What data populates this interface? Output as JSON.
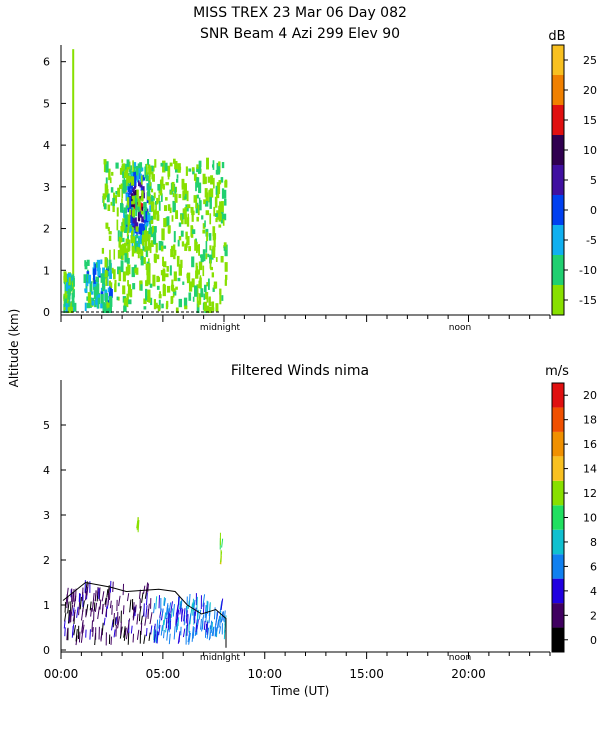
{
  "header": {
    "title_line1": "MISS TREX    23 Mar 06 Day 082",
    "title_line2": "SNR Beam 4 Azi 299 Elev 90"
  },
  "shared": {
    "ylabel": "Altitude (km)",
    "xlabel": "Time (UT)",
    "x_ticks": [
      "00:00",
      "05:00",
      "10:00",
      "15:00",
      "20:00"
    ],
    "x_markers": [
      "midnight",
      "noon"
    ]
  },
  "chart_data": [
    {
      "type": "heatmap",
      "title": "",
      "colorbar_unit": "dB",
      "xlim_hours": [
        0,
        24
      ],
      "ylim_km": [
        0,
        6.4
      ],
      "y_ticks": [
        "0",
        "1",
        "2",
        "3",
        "4",
        "5",
        "6"
      ],
      "colorbar_ticks": [
        "-15",
        "-10",
        "-5",
        "0",
        "5",
        "10",
        "15",
        "20",
        "25"
      ],
      "colorbar_colors": [
        "#88e000",
        "#20d070",
        "#10b0f0",
        "#0040f0",
        "#4010a0",
        "#300050",
        "#e01010",
        "#f08000",
        "#f8c020"
      ],
      "data_extent_hours": [
        0,
        8.1
      ],
      "features": [
        {
          "label": "column",
          "x_hours": [
            0.55,
            0.6
          ],
          "alt_km": [
            0,
            6.3
          ],
          "level_db": -15
        },
        {
          "label": "low_echo",
          "x_hours": [
            0.1,
            0.6
          ],
          "alt_km": [
            0.1,
            1.0
          ],
          "level_db": -8
        },
        {
          "label": "low_echo",
          "x_hours": [
            1.1,
            2.4
          ],
          "alt_km": [
            0.2,
            1.3
          ],
          "level_db": -5
        },
        {
          "label": "core",
          "x_hours": [
            2.9,
            4.5
          ],
          "alt_km": [
            1.5,
            3.6
          ],
          "level_db": 15
        },
        {
          "label": "field",
          "x_hours": [
            2.0,
            8.1
          ],
          "alt_km": [
            0.1,
            3.7
          ],
          "level_db": -12
        }
      ]
    },
    {
      "type": "heatmap",
      "title": "Filtered Winds nima",
      "colorbar_unit": "m/s",
      "xlim_hours": [
        0,
        24
      ],
      "ylim_km": [
        0,
        6.0
      ],
      "y_ticks": [
        "0",
        "1",
        "2",
        "3",
        "4",
        "5"
      ],
      "colorbar_ticks": [
        "0",
        "2",
        "4",
        "6",
        "8",
        "10",
        "12",
        "14",
        "16",
        "18",
        "20"
      ],
      "colorbar_colors": [
        "#000000",
        "#400060",
        "#2000e0",
        "#1080f0",
        "#10c0d0",
        "#20e060",
        "#88e000",
        "#f8c020",
        "#f09000",
        "#f05000",
        "#e01010"
      ],
      "data_extent_hours": [
        0,
        8.1
      ],
      "features": [
        {
          "label": "barbs",
          "x_hours": [
            0.1,
            4.5
          ],
          "alt_km": [
            0.1,
            1.3
          ],
          "speed_ms": 3
        },
        {
          "label": "barbs",
          "x_hours": [
            4.5,
            8.1
          ],
          "alt_km": [
            0.1,
            1.0
          ],
          "speed_ms": 7
        },
        {
          "label": "isolated",
          "x_hours": [
            3.7,
            3.8
          ],
          "alt_km": [
            2.6,
            2.8
          ],
          "speed_ms": 13
        },
        {
          "label": "isolated",
          "x_hours": [
            7.8,
            7.9
          ],
          "alt_km": [
            1.9,
            2.4
          ],
          "speed_ms": 13
        }
      ]
    }
  ]
}
